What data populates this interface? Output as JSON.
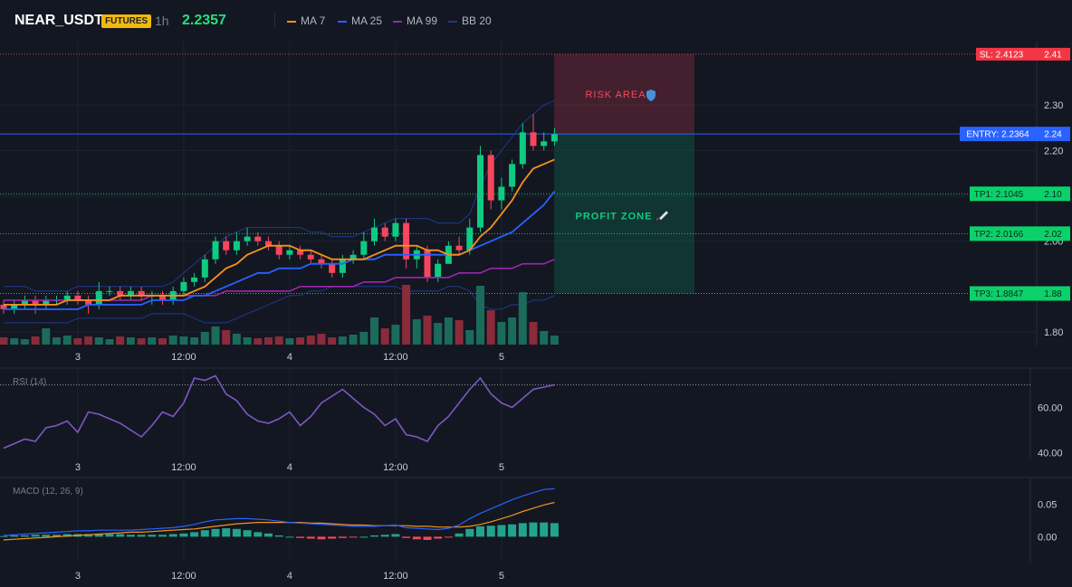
{
  "header": {
    "symbol": "NEAR_USDT",
    "badge": "FUTURES",
    "timeframe": "1h",
    "price": "2.2357",
    "legend": [
      {
        "label": "MA 7",
        "color": "#f7931a"
      },
      {
        "label": "MA 25",
        "color": "#2962ff"
      },
      {
        "label": "MA 99",
        "color": "#9c27b0"
      },
      {
        "label": "BB 20",
        "color": "#1e3a8a"
      }
    ]
  },
  "levels": {
    "sl": {
      "label": "SL: 2.4123",
      "axis": "2.41",
      "value": 2.4123,
      "color": "#f23645"
    },
    "entry": {
      "label": "ENTRY: 2.2364",
      "axis": "2.24",
      "value": 2.2364,
      "color": "#2962ff"
    },
    "tp1": {
      "label": "TP1: 2.1045",
      "axis": "2.10",
      "value": 2.1045,
      "color": "#0bd16b"
    },
    "tp2": {
      "label": "TP2: 2.0166",
      "axis": "2.02",
      "value": 2.0166,
      "color": "#0bd16b"
    },
    "tp3": {
      "label": "TP3: 1.8847",
      "axis": "1.88",
      "value": 1.8847,
      "color": "#0bd16b"
    }
  },
  "zones": {
    "risk_label": "RISK AREA",
    "profit_label": "PROFIT ZONE"
  },
  "colors": {
    "up": "#0ecb81",
    "down": "#f6465d",
    "vol_up": "#1b6b5b",
    "vol_down": "#8a2b3b",
    "rsi": "#7e57c2",
    "macd": "#2962ff",
    "signal": "#f7931a",
    "background": "#131722",
    "grid": "#1e222d"
  },
  "chart_data": [
    {
      "type": "candlestick",
      "title": "NEAR_USDT 1h",
      "price_axis_ticks": [
        1.8,
        2.0,
        2.1,
        2.2,
        2.3
      ],
      "price_axis_labels": [
        "1.80",
        "2.00",
        "2.10",
        "2.20",
        "2.30"
      ],
      "x_labels": [
        "3",
        "12:00",
        "4",
        "12:00",
        "5"
      ],
      "x_label_index": [
        7,
        17,
        27,
        37,
        47
      ],
      "ylim": [
        1.77,
        2.44
      ],
      "candles": [
        [
          1.86,
          1.85,
          1.87,
          1.84
        ],
        [
          1.85,
          1.86,
          1.87,
          1.84
        ],
        [
          1.86,
          1.87,
          1.88,
          1.85
        ],
        [
          1.87,
          1.86,
          1.88,
          1.84
        ],
        [
          1.86,
          1.87,
          1.88,
          1.85
        ],
        [
          1.87,
          1.87,
          1.88,
          1.86
        ],
        [
          1.87,
          1.88,
          1.89,
          1.86
        ],
        [
          1.88,
          1.87,
          1.89,
          1.86
        ],
        [
          1.87,
          1.86,
          1.88,
          1.84
        ],
        [
          1.86,
          1.89,
          1.91,
          1.85
        ],
        [
          1.89,
          1.89,
          1.9,
          1.88
        ],
        [
          1.89,
          1.88,
          1.9,
          1.87
        ],
        [
          1.88,
          1.89,
          1.9,
          1.87
        ],
        [
          1.89,
          1.88,
          1.9,
          1.87
        ],
        [
          1.88,
          1.88,
          1.89,
          1.86
        ],
        [
          1.88,
          1.87,
          1.89,
          1.86
        ],
        [
          1.87,
          1.89,
          1.9,
          1.86
        ],
        [
          1.89,
          1.91,
          1.92,
          1.88
        ],
        [
          1.91,
          1.92,
          1.93,
          1.9
        ],
        [
          1.92,
          1.96,
          1.97,
          1.91
        ],
        [
          1.96,
          2.0,
          2.01,
          1.95
        ],
        [
          2.0,
          1.98,
          2.01,
          1.97
        ],
        [
          1.98,
          2.0,
          2.02,
          1.97
        ],
        [
          2.0,
          2.01,
          2.03,
          1.99
        ],
        [
          2.01,
          2.0,
          2.02,
          1.99
        ],
        [
          2.0,
          1.99,
          2.01,
          1.98
        ],
        [
          1.99,
          1.97,
          2.0,
          1.96
        ],
        [
          1.97,
          1.98,
          1.99,
          1.96
        ],
        [
          1.98,
          1.97,
          1.99,
          1.96
        ],
        [
          1.97,
          1.96,
          1.98,
          1.95
        ],
        [
          1.96,
          1.95,
          1.97,
          1.94
        ],
        [
          1.95,
          1.93,
          1.96,
          1.92
        ],
        [
          1.93,
          1.96,
          1.97,
          1.92
        ],
        [
          1.96,
          1.97,
          1.98,
          1.95
        ],
        [
          1.97,
          2.0,
          2.02,
          1.96
        ],
        [
          2.0,
          2.03,
          2.05,
          1.99
        ],
        [
          2.03,
          2.01,
          2.04,
          2.0
        ],
        [
          2.01,
          2.04,
          2.05,
          2.0
        ],
        [
          2.04,
          1.96,
          2.05,
          1.94
        ],
        [
          1.96,
          1.98,
          1.99,
          1.94
        ],
        [
          1.98,
          1.92,
          1.99,
          1.91
        ],
        [
          1.92,
          1.95,
          1.96,
          1.91
        ],
        [
          1.95,
          1.99,
          2.0,
          1.95
        ],
        [
          1.99,
          1.98,
          2.01,
          1.97
        ],
        [
          1.98,
          2.03,
          2.05,
          1.97
        ],
        [
          2.03,
          2.19,
          2.21,
          2.02
        ],
        [
          2.19,
          2.09,
          2.2,
          2.07
        ],
        [
          2.09,
          2.12,
          2.14,
          2.07
        ],
        [
          2.12,
          2.17,
          2.18,
          2.11
        ],
        [
          2.17,
          2.24,
          2.26,
          2.16
        ],
        [
          2.24,
          2.21,
          2.28,
          2.2
        ],
        [
          2.21,
          2.22,
          2.24,
          2.2
        ],
        [
          2.22,
          2.2357,
          2.25,
          2.21
        ]
      ],
      "volume": [
        8,
        7,
        6,
        9,
        18,
        8,
        10,
        7,
        9,
        8,
        6,
        9,
        8,
        7,
        8,
        7,
        10,
        9,
        8,
        14,
        20,
        16,
        12,
        8,
        7,
        8,
        9,
        7,
        8,
        10,
        12,
        8,
        9,
        11,
        14,
        30,
        18,
        22,
        66,
        28,
        32,
        24,
        30,
        27,
        16,
        65,
        38,
        25,
        30,
        58,
        25,
        15,
        10
      ],
      "series": [
        {
          "name": "MA 7",
          "values": [
            1.86,
            1.86,
            1.86,
            1.86,
            1.86,
            1.86,
            1.87,
            1.87,
            1.87,
            1.87,
            1.87,
            1.88,
            1.88,
            1.88,
            1.88,
            1.88,
            1.88,
            1.88,
            1.89,
            1.9,
            1.92,
            1.94,
            1.95,
            1.97,
            1.98,
            1.99,
            1.99,
            1.99,
            1.98,
            1.98,
            1.97,
            1.96,
            1.96,
            1.96,
            1.96,
            1.97,
            1.98,
            1.99,
            1.99,
            1.99,
            1.98,
            1.98,
            1.97,
            1.97,
            1.98,
            2.01,
            2.03,
            2.06,
            2.09,
            2.13,
            2.16,
            2.17,
            2.18
          ]
        },
        {
          "name": "MA 25",
          "values": [
            1.85,
            1.85,
            1.85,
            1.85,
            1.85,
            1.85,
            1.85,
            1.85,
            1.86,
            1.86,
            1.86,
            1.86,
            1.86,
            1.86,
            1.87,
            1.87,
            1.87,
            1.87,
            1.88,
            1.88,
            1.89,
            1.9,
            1.91,
            1.92,
            1.93,
            1.93,
            1.94,
            1.94,
            1.94,
            1.95,
            1.95,
            1.95,
            1.95,
            1.96,
            1.96,
            1.96,
            1.97,
            1.97,
            1.97,
            1.97,
            1.97,
            1.97,
            1.97,
            1.97,
            1.98,
            1.99,
            2.0,
            2.01,
            2.02,
            2.04,
            2.06,
            2.08,
            2.11
          ]
        },
        {
          "name": "MA 99",
          "values": [
            1.87,
            1.87,
            1.87,
            1.87,
            1.87,
            1.87,
            1.87,
            1.87,
            1.87,
            1.87,
            1.87,
            1.87,
            1.87,
            1.87,
            1.88,
            1.88,
            1.88,
            1.88,
            1.88,
            1.88,
            1.88,
            1.89,
            1.89,
            1.89,
            1.89,
            1.89,
            1.89,
            1.89,
            1.9,
            1.9,
            1.9,
            1.9,
            1.9,
            1.9,
            1.91,
            1.91,
            1.91,
            1.92,
            1.92,
            1.92,
            1.92,
            1.92,
            1.92,
            1.93,
            1.93,
            1.93,
            1.94,
            1.94,
            1.94,
            1.95,
            1.95,
            1.95,
            1.96
          ]
        },
        {
          "name": "BB 20 upper",
          "values": [
            1.9,
            1.9,
            1.9,
            1.89,
            1.89,
            1.89,
            1.89,
            1.9,
            1.9,
            1.9,
            1.9,
            1.9,
            1.9,
            1.9,
            1.9,
            1.9,
            1.91,
            1.93,
            1.95,
            1.97,
            1.99,
            2.01,
            2.02,
            2.03,
            2.03,
            2.03,
            2.03,
            2.03,
            2.03,
            2.02,
            2.02,
            2.01,
            2.01,
            2.01,
            2.02,
            2.03,
            2.04,
            2.05,
            2.05,
            2.05,
            2.05,
            2.04,
            2.04,
            2.04,
            2.06,
            2.12,
            2.17,
            2.2,
            2.23,
            2.26,
            2.28,
            2.3,
            2.31
          ]
        },
        {
          "name": "BB 20 lower",
          "values": [
            1.82,
            1.82,
            1.82,
            1.82,
            1.82,
            1.82,
            1.82,
            1.83,
            1.83,
            1.83,
            1.83,
            1.83,
            1.83,
            1.83,
            1.84,
            1.84,
            1.84,
            1.84,
            1.83,
            1.82,
            1.82,
            1.82,
            1.83,
            1.84,
            1.85,
            1.86,
            1.87,
            1.88,
            1.88,
            1.89,
            1.89,
            1.9,
            1.9,
            1.9,
            1.9,
            1.9,
            1.9,
            1.9,
            1.89,
            1.89,
            1.89,
            1.89,
            1.9,
            1.9,
            1.89,
            1.86,
            1.85,
            1.85,
            1.86,
            1.86,
            1.87,
            1.87,
            1.88
          ]
        }
      ]
    },
    {
      "type": "line",
      "title": "RSI (14)",
      "ylim": [
        37,
        77
      ],
      "y_ticks": [
        40,
        60
      ],
      "y_tick_labels": [
        "40.00",
        "60.00"
      ],
      "reference_line": 70,
      "series": [
        {
          "name": "RSI (14)",
          "values": [
            42,
            44,
            46,
            45,
            51,
            52,
            54,
            49,
            58,
            57,
            55,
            53,
            50,
            47,
            52,
            58,
            56,
            62,
            73,
            72,
            74,
            66,
            63,
            57,
            54,
            53,
            55,
            58,
            52,
            56,
            62,
            65,
            68,
            64,
            60,
            57,
            52,
            55,
            48,
            47,
            45,
            52,
            56,
            62,
            68,
            73,
            66,
            62,
            60,
            64,
            68,
            69,
            70
          ]
        }
      ]
    },
    {
      "type": "bar",
      "title": "MACD (12, 26, 9)",
      "ylim": [
        -0.04,
        0.09
      ],
      "y_ticks": [
        0.0,
        0.05
      ],
      "y_tick_labels": [
        "0.00",
        "0.05"
      ],
      "histogram": [
        0.001,
        0.002,
        0.002,
        0.003,
        0.003,
        0.003,
        0.004,
        0.004,
        0.004,
        0.004,
        0.004,
        0.004,
        0.003,
        0.003,
        0.003,
        0.003,
        0.004,
        0.005,
        0.007,
        0.01,
        0.012,
        0.013,
        0.012,
        0.01,
        0.007,
        0.005,
        0.002,
        0.0,
        -0.002,
        -0.003,
        -0.004,
        -0.003,
        -0.002,
        -0.001,
        0.0,
        0.002,
        0.003,
        0.004,
        -0.002,
        -0.004,
        -0.005,
        -0.003,
        -0.001,
        0.005,
        0.012,
        0.016,
        0.017,
        0.018,
        0.019,
        0.021,
        0.022,
        0.022,
        0.021
      ],
      "series": [
        {
          "name": "MACD",
          "values": [
            0.002,
            0.003,
            0.004,
            0.005,
            0.006,
            0.007,
            0.008,
            0.009,
            0.009,
            0.01,
            0.01,
            0.01,
            0.01,
            0.011,
            0.012,
            0.013,
            0.014,
            0.016,
            0.019,
            0.023,
            0.026,
            0.027,
            0.028,
            0.028,
            0.027,
            0.026,
            0.024,
            0.022,
            0.021,
            0.02,
            0.019,
            0.018,
            0.017,
            0.016,
            0.016,
            0.016,
            0.017,
            0.018,
            0.014,
            0.013,
            0.012,
            0.011,
            0.013,
            0.018,
            0.028,
            0.036,
            0.043,
            0.05,
            0.057,
            0.063,
            0.068,
            0.073,
            0.074
          ]
        },
        {
          "name": "Signal",
          "values": [
            -0.005,
            -0.004,
            -0.003,
            -0.002,
            -0.001,
            0.0,
            0.001,
            0.002,
            0.003,
            0.004,
            0.005,
            0.006,
            0.007,
            0.007,
            0.008,
            0.009,
            0.01,
            0.011,
            0.012,
            0.014,
            0.016,
            0.018,
            0.02,
            0.021,
            0.022,
            0.022,
            0.022,
            0.022,
            0.022,
            0.021,
            0.021,
            0.02,
            0.019,
            0.018,
            0.018,
            0.017,
            0.017,
            0.017,
            0.017,
            0.016,
            0.016,
            0.015,
            0.015,
            0.015,
            0.016,
            0.019,
            0.023,
            0.028,
            0.033,
            0.039,
            0.044,
            0.049,
            0.053
          ]
        }
      ]
    }
  ]
}
